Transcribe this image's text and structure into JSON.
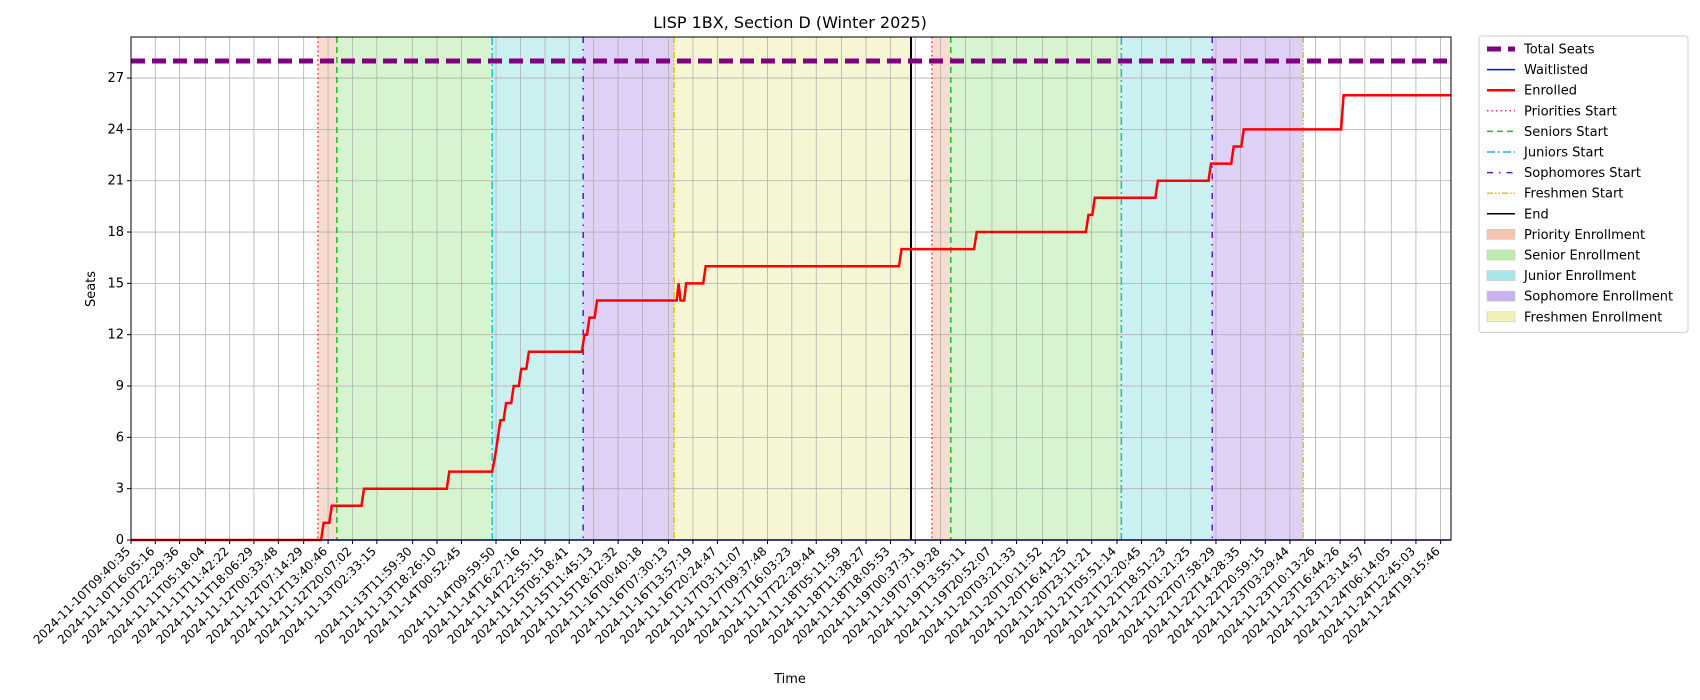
{
  "chart_data": {
    "type": "line",
    "title": "LISP 1BX, Section D (Winter 2025)",
    "xlabel": "Time",
    "ylabel": "Seats",
    "ylim": [
      0,
      29.4
    ],
    "yticks": [
      0,
      3,
      6,
      9,
      12,
      15,
      18,
      21,
      24,
      27
    ],
    "xlim": [
      "2024-11-10T09:40:35",
      "2024-11-24T22:00:00"
    ],
    "grid": true,
    "legend_position": "outside-right",
    "x_tick_labels": [
      "2024-11-10T09:40:35",
      "2024-11-10T16:05:16",
      "2024-11-10T22:29:36",
      "2024-11-11T05:18:04",
      "2024-11-11T11:42:22",
      "2024-11-11T18:06:29",
      "2024-11-12T00:33:48",
      "2024-11-12T07:14:29",
      "2024-11-12T13:40:46",
      "2024-11-12T20:07:02",
      "2024-11-13T02:33:15",
      "2024-11-13T11:59:30",
      "2024-11-13T18:26:10",
      "2024-11-14T00:52:45",
      "2024-11-14T09:59:50",
      "2024-11-14T16:27:16",
      "2024-11-14T22:55:15",
      "2024-11-15T05:18:41",
      "2024-11-15T11:45:13",
      "2024-11-15T18:12:32",
      "2024-11-16T00:40:18",
      "2024-11-16T07:30:13",
      "2024-11-16T13:57:19",
      "2024-11-16T20:24:47",
      "2024-11-17T03:11:07",
      "2024-11-17T09:37:48",
      "2024-11-17T16:03:23",
      "2024-11-17T22:29:44",
      "2024-11-18T05:11:59",
      "2024-11-18T11:38:27",
      "2024-11-18T18:05:53",
      "2024-11-19T00:37:31",
      "2024-11-19T07:19:28",
      "2024-11-19T13:55:11",
      "2024-11-19T20:52:07",
      "2024-11-20T03:21:33",
      "2024-11-20T10:11:52",
      "2024-11-20T16:41:25",
      "2024-11-20T23:11:21",
      "2024-11-21T05:51:14",
      "2024-11-21T12:20:45",
      "2024-11-21T18:51:23",
      "2024-11-22T01:21:25",
      "2024-11-22T07:58:29",
      "2024-11-22T14:28:35",
      "2024-11-22T20:59:15",
      "2024-11-23T03:29:44",
      "2024-11-23T10:13:26",
      "2024-11-23T16:44:26",
      "2024-11-23T23:14:57",
      "2024-11-24T06:14:05",
      "2024-11-24T12:45:03",
      "2024-11-24T19:15:46"
    ],
    "series": [
      {
        "name": "Total Seats",
        "color": "#800080",
        "style": "dashed",
        "points": [
          [
            "2024-11-10T09:40:35",
            28
          ],
          [
            "2024-11-24T22:00:00",
            28
          ]
        ]
      },
      {
        "name": "Waitlisted",
        "color": "#0000ff",
        "style": "solid",
        "points": [
          [
            "2024-11-10T09:40:35",
            0
          ],
          [
            "2024-11-24T22:00:00",
            0
          ]
        ]
      },
      {
        "name": "Enrolled",
        "color": "#ff0000",
        "style": "solid",
        "points": [
          [
            "2024-11-10T09:40:35",
            0
          ],
          [
            "2024-11-12T11:50:00",
            0
          ],
          [
            "2024-11-12T12:30:00",
            1
          ],
          [
            "2024-11-12T14:00:00",
            1
          ],
          [
            "2024-11-12T14:40:00",
            2
          ],
          [
            "2024-11-12T22:30:00",
            2
          ],
          [
            "2024-11-12T23:10:00",
            3
          ],
          [
            "2024-11-13T21:00:00",
            3
          ],
          [
            "2024-11-13T21:40:00",
            4
          ],
          [
            "2024-11-14T09:00:00",
            4
          ],
          [
            "2024-11-14T09:50:00",
            5
          ],
          [
            "2024-11-14T10:30:00",
            6
          ],
          [
            "2024-11-14T11:10:00",
            7
          ],
          [
            "2024-11-14T12:00:00",
            7
          ],
          [
            "2024-11-14T12:40:00",
            8
          ],
          [
            "2024-11-14T14:00:00",
            8
          ],
          [
            "2024-11-14T14:40:00",
            9
          ],
          [
            "2024-11-14T16:00:00",
            9
          ],
          [
            "2024-11-14T16:40:00",
            10
          ],
          [
            "2024-11-14T18:00:00",
            10
          ],
          [
            "2024-11-14T18:40:00",
            11
          ],
          [
            "2024-11-15T08:40:00",
            11
          ],
          [
            "2024-11-15T09:20:00",
            12
          ],
          [
            "2024-11-15T10:00:00",
            12
          ],
          [
            "2024-11-15T10:40:00",
            13
          ],
          [
            "2024-11-15T12:00:00",
            13
          ],
          [
            "2024-11-15T12:40:00",
            14
          ],
          [
            "2024-11-16T09:40:00",
            14
          ],
          [
            "2024-11-16T10:10:00",
            15
          ],
          [
            "2024-11-16T10:40:00",
            14
          ],
          [
            "2024-11-16T11:40:00",
            14
          ],
          [
            "2024-11-16T12:10:00",
            15
          ],
          [
            "2024-11-16T16:40:00",
            15
          ],
          [
            "2024-11-16T17:20:00",
            16
          ],
          [
            "2024-11-18T20:20:00",
            16
          ],
          [
            "2024-11-18T21:00:00",
            17
          ],
          [
            "2024-11-19T16:10:00",
            17
          ],
          [
            "2024-11-19T16:50:00",
            18
          ],
          [
            "2024-11-20T21:40:00",
            18
          ],
          [
            "2024-11-20T22:20:00",
            19
          ],
          [
            "2024-11-20T23:20:00",
            19
          ],
          [
            "2024-11-21T00:00:00",
            20
          ],
          [
            "2024-11-21T16:00:00",
            20
          ],
          [
            "2024-11-21T16:40:00",
            21
          ],
          [
            "2024-11-22T06:00:00",
            21
          ],
          [
            "2024-11-22T06:40:00",
            22
          ],
          [
            "2024-11-22T12:00:00",
            22
          ],
          [
            "2024-11-22T12:40:00",
            23
          ],
          [
            "2024-11-22T14:40:00",
            23
          ],
          [
            "2024-11-22T15:20:00",
            24
          ],
          [
            "2024-11-23T17:00:00",
            24
          ],
          [
            "2024-11-23T17:40:00",
            26
          ],
          [
            "2024-11-24T22:00:00",
            26
          ]
        ]
      }
    ],
    "vlines": [
      {
        "name": "Priorities Start",
        "color": "#e2412f",
        "style": "dotted",
        "at": [
          "2024-11-12T11:00:00",
          "2024-11-19T05:00:00"
        ]
      },
      {
        "name": "Seniors Start",
        "color": "#22bb22",
        "style": "dashed",
        "at": [
          "2024-11-12T16:00:00",
          "2024-11-19T10:00:00"
        ]
      },
      {
        "name": "Juniors Start",
        "color": "#17becf",
        "style": "dashdot",
        "at": [
          "2024-11-14T09:00:00",
          "2024-11-21T07:00:00"
        ]
      },
      {
        "name": "Sophomores Start",
        "color": "#6a0dcc",
        "style": "loosedashdot",
        "at": [
          "2024-11-15T09:00:00",
          "2024-11-22T07:00:00"
        ]
      },
      {
        "name": "Freshmen Start",
        "color": "#d8c800",
        "style": "dashdotdot",
        "at": [
          "2024-11-16T09:00:00",
          "2024-11-23T07:00:00"
        ]
      },
      {
        "name": "End",
        "color": "#000000",
        "style": "solid",
        "at": [
          "2024-11-18T23:30:00"
        ]
      }
    ],
    "spans": [
      {
        "name": "Priority Enrollment",
        "color": "#f5c5b0",
        "ranges": [
          [
            "2024-11-12T11:00:00",
            "2024-11-12T16:00:00"
          ],
          [
            "2024-11-19T05:00:00",
            "2024-11-19T10:00:00"
          ]
        ]
      },
      {
        "name": "Senior Enrollment",
        "color": "#bdecb0",
        "ranges": [
          [
            "2024-11-12T16:00:00",
            "2024-11-14T09:00:00"
          ],
          [
            "2024-11-19T10:00:00",
            "2024-11-21T07:00:00"
          ]
        ]
      },
      {
        "name": "Junior Enrollment",
        "color": "#a8e6ea",
        "ranges": [
          [
            "2024-11-14T09:00:00",
            "2024-11-15T09:00:00"
          ],
          [
            "2024-11-21T07:00:00",
            "2024-11-22T07:00:00"
          ]
        ]
      },
      {
        "name": "Sophomore Enrollment",
        "color": "#c9b3ee",
        "ranges": [
          [
            "2024-11-15T09:00:00",
            "2024-11-16T09:00:00"
          ],
          [
            "2024-11-22T07:00:00",
            "2024-11-23T07:00:00"
          ]
        ]
      },
      {
        "name": "Freshmen Enrollment",
        "color": "#f0f0b8",
        "ranges": [
          [
            "2024-11-16T09:00:00",
            "2024-11-18T23:30:00"
          ],
          [
            "2024-11-23T07:00:00",
            "2024-11-23T07:00:00"
          ]
        ]
      }
    ],
    "legend": [
      {
        "label": "Total Seats",
        "kind": "line",
        "color": "#800080",
        "style": "dashed-thick"
      },
      {
        "label": "Waitlisted",
        "kind": "line",
        "color": "#0000ff",
        "style": "solid"
      },
      {
        "label": "Enrolled",
        "kind": "line",
        "color": "#ff0000",
        "style": "solid-thick"
      },
      {
        "label": "Priorities Start",
        "kind": "line",
        "color": "#e2412f",
        "style": "dotted"
      },
      {
        "label": "Seniors Start",
        "kind": "line",
        "color": "#22bb22",
        "style": "dashed"
      },
      {
        "label": "Juniors Start",
        "kind": "line",
        "color": "#17becf",
        "style": "dashdot"
      },
      {
        "label": "Sophomores Start",
        "kind": "line",
        "color": "#6a0dcc",
        "style": "loosedashdot"
      },
      {
        "label": "Freshmen Start",
        "kind": "line",
        "color": "#d8c800",
        "style": "dashdotdot"
      },
      {
        "label": "End",
        "kind": "line",
        "color": "#000000",
        "style": "solid"
      },
      {
        "label": "Priority Enrollment",
        "kind": "patch",
        "color": "#f5c5b0"
      },
      {
        "label": "Senior Enrollment",
        "kind": "patch",
        "color": "#bdecb0"
      },
      {
        "label": "Junior Enrollment",
        "kind": "patch",
        "color": "#a8e6ea"
      },
      {
        "label": "Sophomore Enrollment",
        "kind": "patch",
        "color": "#c9b3ee"
      },
      {
        "label": "Freshmen Enrollment",
        "kind": "patch",
        "color": "#f0f0b8"
      }
    ]
  }
}
